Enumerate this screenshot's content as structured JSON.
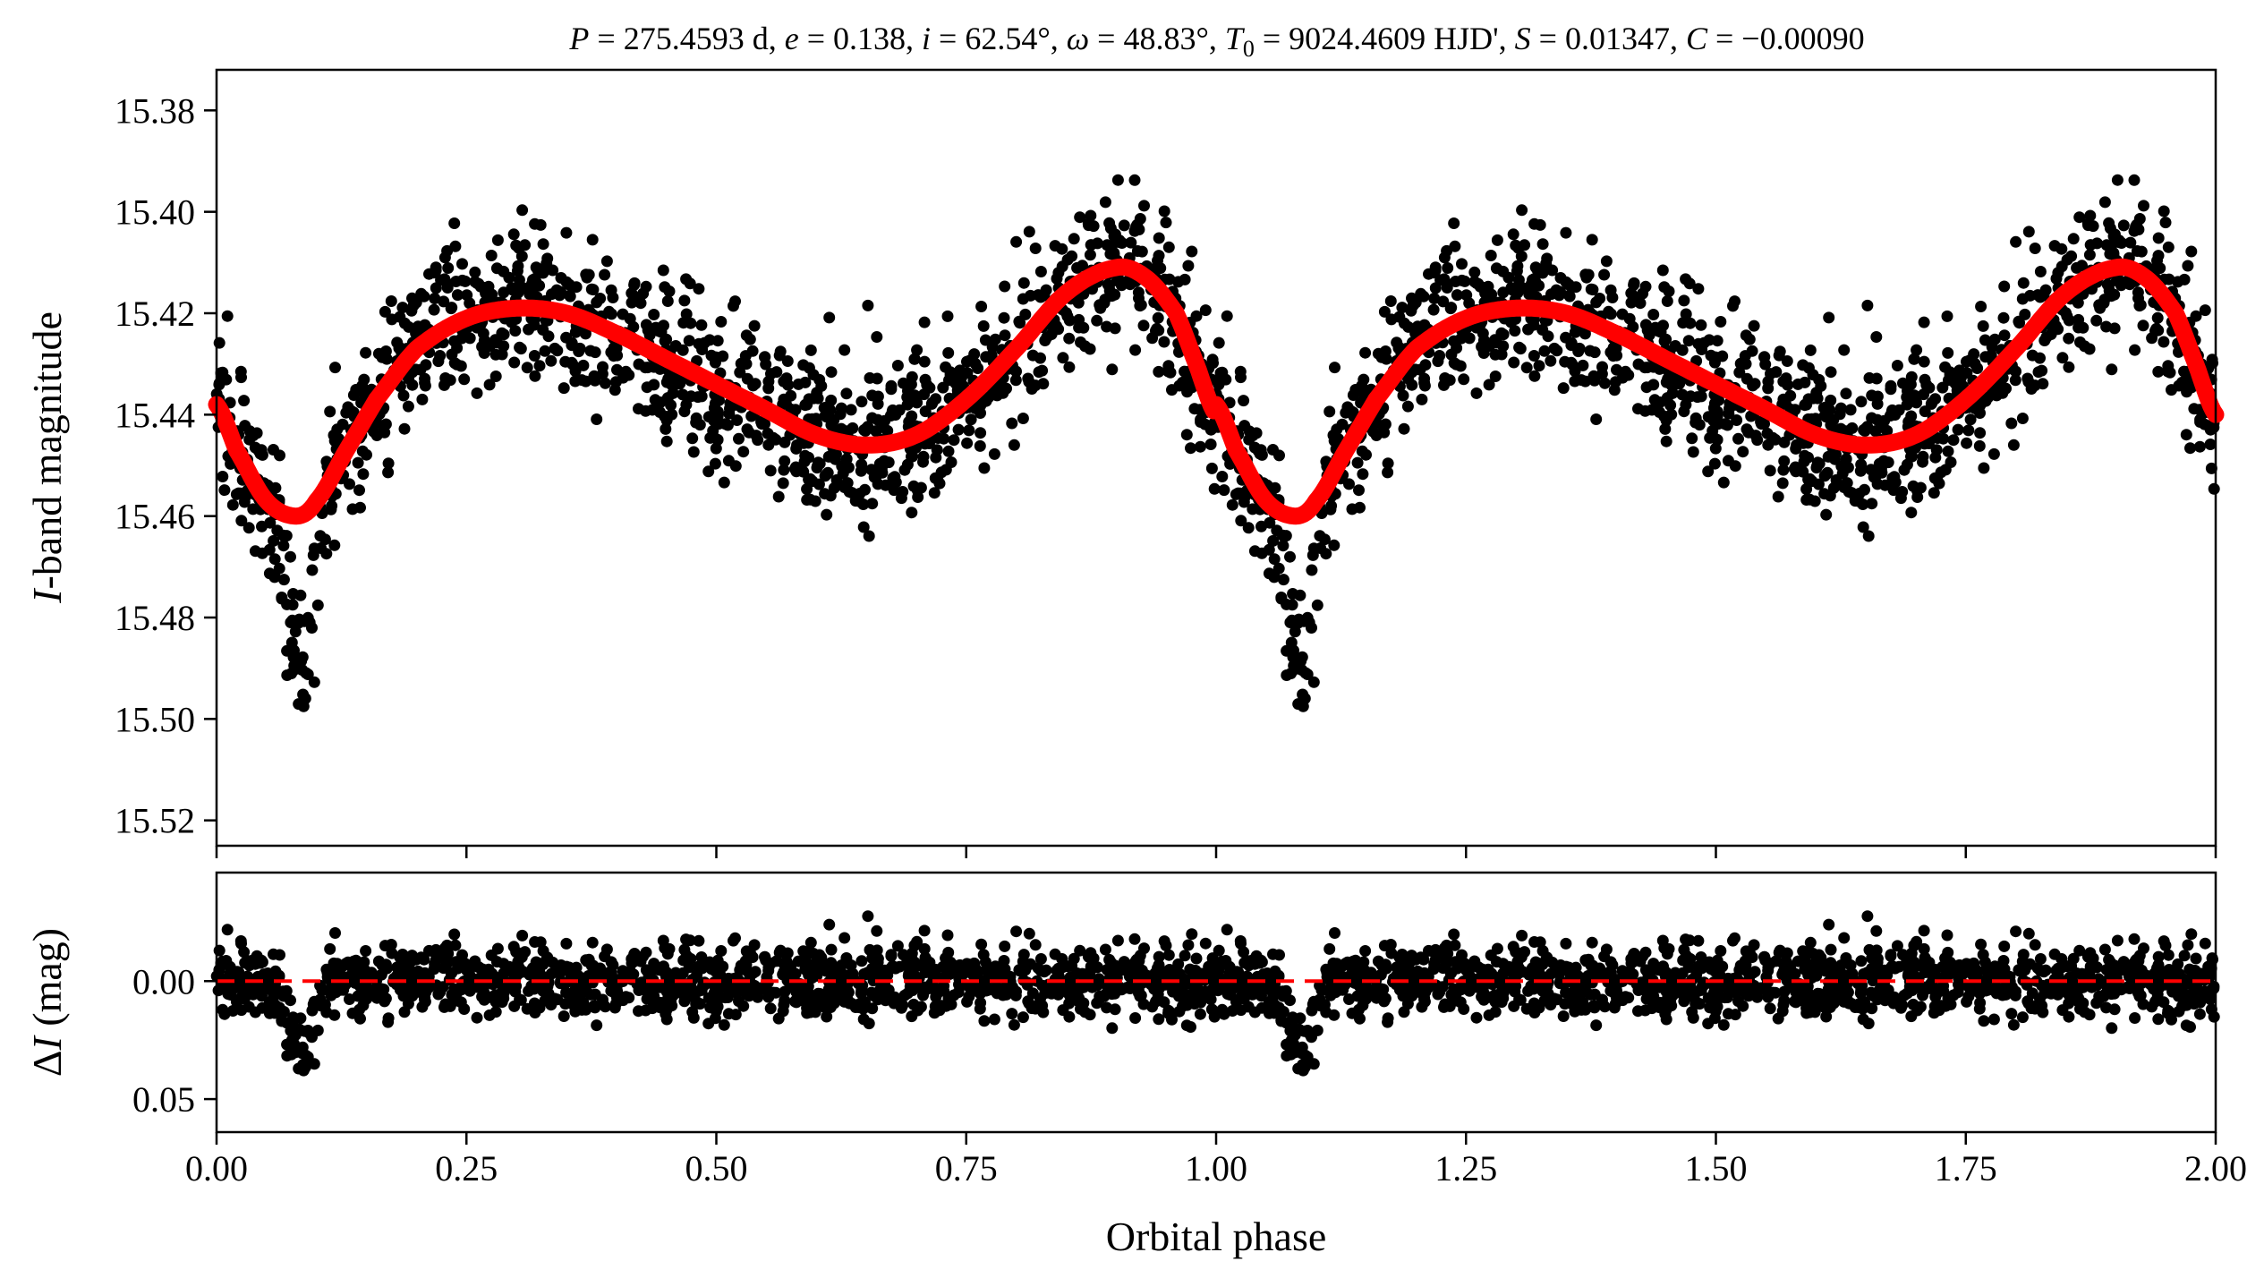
{
  "chart_data": [
    {
      "type": "scatter",
      "panel": "top",
      "title": "P = 275.4593 d, e = 0.138, i = 62.54°, ω = 48.83°, T0 = 9024.4609 HJD', S = 0.01347, C = −0.00090",
      "title_parts": {
        "P_sym": "P",
        "P_val": " = 275.4593 d, ",
        "e_sym": "e",
        "e_val": " = 0.138, ",
        "i_sym": "i",
        "i_val": " = 62.54°, ",
        "w_sym": "ω",
        "w_val": " = 48.83°, ",
        "T_sym": "T",
        "T_sub": "0",
        "T_val": " = 9024.4609 HJD', ",
        "S_sym": "S",
        "S_val": " = 0.01347, ",
        "C_sym": "C",
        "C_val": " = −0.00090"
      },
      "xlabel": "",
      "ylabel_italic": "I",
      "ylabel_rest": "-band magnitude",
      "xlim": [
        0.0,
        2.0
      ],
      "ylim": [
        15.525,
        15.372
      ],
      "y_inverted": true,
      "yticks": [
        15.38,
        15.4,
        15.42,
        15.44,
        15.46,
        15.48,
        15.5,
        15.52
      ],
      "ytick_labels": [
        "15.38",
        "15.40",
        "15.42",
        "15.44",
        "15.46",
        "15.48",
        "15.50",
        "15.52"
      ],
      "xticks": [
        0.0,
        0.25,
        0.5,
        0.75,
        1.0,
        1.25,
        1.5,
        1.75,
        2.0
      ],
      "series": [
        {
          "name": "observations",
          "kind": "points",
          "color": "#000000",
          "description_points": "approx. 2600 individual measurements over two repeated phase cycles, scatter ~0.008 mag around the model",
          "x": [
            0.02,
            0.05,
            0.08,
            0.1,
            0.15,
            0.2,
            0.25,
            0.3,
            0.35,
            0.4,
            0.45,
            0.5,
            0.55,
            0.6,
            0.65,
            0.7,
            0.75,
            0.8,
            0.85,
            0.9,
            0.95,
            0.98
          ],
          "y": [
            15.441,
            15.457,
            15.49,
            15.472,
            15.44,
            15.425,
            15.418,
            15.416,
            15.417,
            15.421,
            15.425,
            15.431,
            15.437,
            15.446,
            15.45,
            15.44,
            15.43,
            15.416,
            15.405,
            15.398,
            15.404,
            15.425
          ]
        },
        {
          "name": "model",
          "kind": "line",
          "color": "#ff0000",
          "x": [
            0.0,
            0.02,
            0.05,
            0.08,
            0.1,
            0.13,
            0.16,
            0.2,
            0.25,
            0.3,
            0.35,
            0.4,
            0.45,
            0.5,
            0.55,
            0.6,
            0.65,
            0.7,
            0.75,
            0.8,
            0.85,
            0.9,
            0.93,
            0.96,
            0.98,
            1.0
          ],
          "y": [
            15.438,
            15.447,
            15.457,
            15.46,
            15.457,
            15.447,
            15.437,
            15.427,
            15.421,
            15.419,
            15.42,
            15.424,
            15.429,
            15.434,
            15.439,
            15.444,
            15.446,
            15.444,
            15.437,
            15.427,
            15.416,
            15.411,
            15.413,
            15.42,
            15.43,
            15.44
          ]
        }
      ]
    },
    {
      "type": "scatter",
      "panel": "bottom",
      "title": "",
      "xlabel": "Orbital phase",
      "ylabel_prefix": "Δ",
      "ylabel_italic": "I",
      "ylabel_rest": " (mag)",
      "xlim": [
        0.0,
        2.0
      ],
      "ylim": [
        0.064,
        -0.046
      ],
      "y_inverted": true,
      "yticks": [
        0.0,
        0.05
      ],
      "ytick_labels": [
        "0.00",
        "0.05"
      ],
      "xticks": [
        0.0,
        0.25,
        0.5,
        0.75,
        1.0,
        1.25,
        1.5,
        1.75,
        2.0
      ],
      "xtick_labels": [
        "0.00",
        "0.25",
        "0.50",
        "0.75",
        "1.00",
        "1.25",
        "1.50",
        "1.75",
        "2.00"
      ],
      "reference_line": {
        "y": 0.0,
        "style": "dashed",
        "color": "#ff0000"
      },
      "series": [
        {
          "name": "residuals",
          "kind": "points",
          "color": "#000000",
          "x": [
            0.02,
            0.05,
            0.08,
            0.1,
            0.2,
            0.4,
            0.6,
            0.65,
            0.8,
            0.95
          ],
          "y": [
            0.0,
            0.01,
            0.03,
            0.025,
            -0.003,
            -0.002,
            0.005,
            0.008,
            -0.003,
            -0.005
          ]
        }
      ]
    }
  ]
}
